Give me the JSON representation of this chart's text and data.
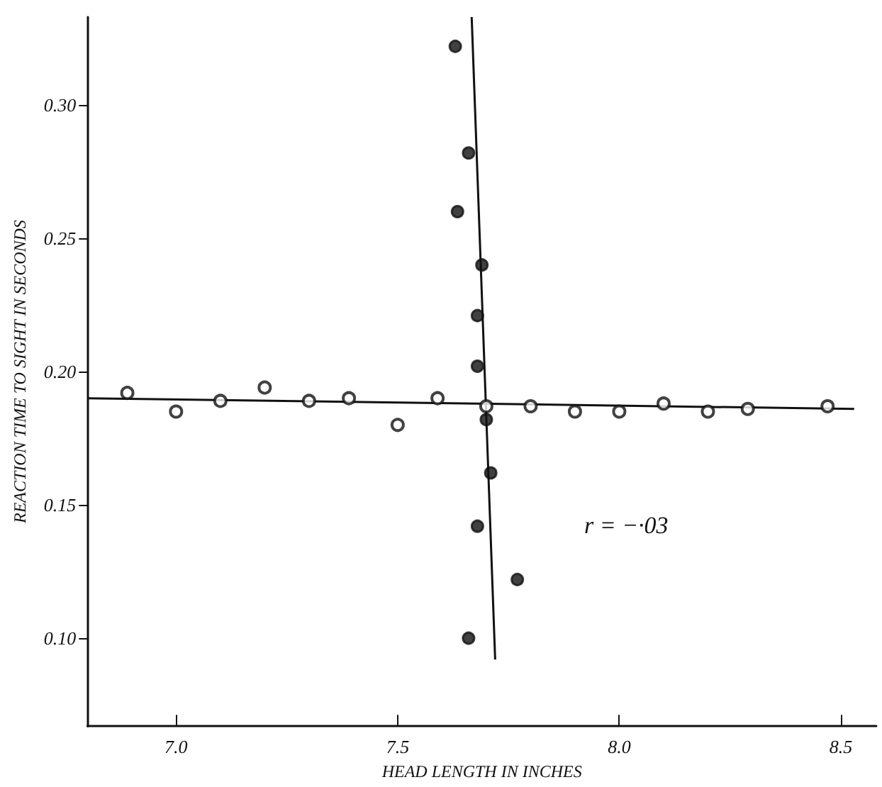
{
  "chart_data": {
    "type": "scatter",
    "xlabel": "HEAD LENGTH IN INCHES",
    "ylabel": "REACTION TIME TO SIGHT IN SECONDS",
    "xlim": [
      6.8,
      8.58
    ],
    "ylim": [
      0.067,
      0.333
    ],
    "xticks": [
      {
        "value": 7.0,
        "label": "7.0"
      },
      {
        "value": 7.5,
        "label": "7.5"
      },
      {
        "value": 8.0,
        "label": "8.0"
      },
      {
        "value": 8.5,
        "label": "8.5"
      }
    ],
    "yticks": [
      {
        "value": 0.1,
        "label": "0.10"
      },
      {
        "value": 0.15,
        "label": "0.15"
      },
      {
        "value": 0.2,
        "label": "0.20"
      },
      {
        "value": 0.25,
        "label": "0.25"
      },
      {
        "value": 0.3,
        "label": "0.30"
      }
    ],
    "grid": false,
    "series": [
      {
        "color": "#111111",
        "marker": "circle",
        "x": [
          6.89,
          7.0,
          7.1,
          7.2,
          7.3,
          7.39,
          7.5,
          7.59,
          7.7,
          7.8,
          7.9,
          8.0,
          8.1,
          8.2,
          8.29,
          8.47
        ],
        "values": [
          0.192,
          0.185,
          0.189,
          0.194,
          0.189,
          0.19,
          0.18,
          0.19,
          0.187,
          0.187,
          0.185,
          0.185,
          0.188,
          0.185,
          0.186,
          0.187
        ]
      },
      {
        "color": "#111111",
        "marker": "circle",
        "x": [
          7.63,
          7.66,
          7.635,
          7.69,
          7.68,
          7.68,
          7.7,
          7.71,
          7.68,
          7.77,
          7.66
        ],
        "values": [
          0.322,
          0.282,
          0.26,
          0.24,
          0.221,
          0.202,
          0.182,
          0.162,
          0.142,
          0.122,
          0.1
        ]
      },
      {
        "type": "line",
        "marker": "none",
        "color": "#111111",
        "x": [
          6.8,
          8.53
        ],
        "values": [
          0.19,
          0.186
        ]
      },
      {
        "type": "line",
        "marker": "none",
        "color": "#111111",
        "x": [
          7.667,
          7.72
        ],
        "values": [
          0.333,
          0.092
        ]
      }
    ],
    "annotations": [
      "r = −·03"
    ]
  }
}
